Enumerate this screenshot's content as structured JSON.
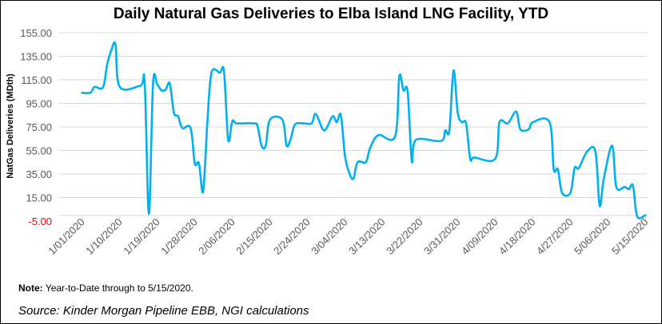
{
  "chart_data": {
    "type": "line",
    "title": "Daily Natural Gas Deliveries to Elba Island LNG Facility, YTD",
    "ylabel": "NatGas Deliveries (MDth)",
    "xlabel": "",
    "ylim": [
      -5,
      155
    ],
    "yticks": [
      "155.00",
      "135.00",
      "115.00",
      "95.00",
      "75.00",
      "55.00",
      "35.00",
      "15.00",
      "-5.00"
    ],
    "xticks": [
      "1/01/2020",
      "1/10/2020",
      "1/19/2020",
      "1/28/2020",
      "2/06/2020",
      "2/15/2020",
      "2/24/2020",
      "3/04/2020",
      "3/13/2020",
      "3/22/2020",
      "3/31/2020",
      "4/09/2020",
      "4/18/2020",
      "4/27/2020",
      "5/06/2020",
      "5/15/2020"
    ],
    "grid": true,
    "line_color": "#00B0F0",
    "negative_tick_color": "#FF0000",
    "series": [
      {
        "points": [
          [
            "1/01/2020",
            104
          ],
          [
            "1/03/2020",
            104
          ],
          [
            "1/04/2020",
            109
          ],
          [
            "1/06/2020",
            108.5
          ],
          [
            "1/07/2020",
            128
          ],
          [
            "1/08/2020",
            140
          ],
          [
            "1/09/2020",
            145
          ],
          [
            "1/10/2020",
            109
          ],
          [
            "1/15/2020",
            110
          ],
          [
            "1/16/2020",
            112
          ],
          [
            "1/17/2020",
            1
          ],
          [
            "1/18/2020",
            112
          ],
          [
            "1/19/2020",
            111
          ],
          [
            "1/20/2020",
            106
          ],
          [
            "1/21/2020",
            106.5
          ],
          [
            "1/22/2020",
            112
          ],
          [
            "1/23/2020",
            87
          ],
          [
            "1/24/2020",
            84
          ],
          [
            "1/25/2020",
            74
          ],
          [
            "1/27/2020",
            74
          ],
          [
            "1/28/2020",
            44
          ],
          [
            "1/29/2020",
            44
          ],
          [
            "1/30/2020",
            20
          ],
          [
            "1/31/2020",
            78
          ],
          [
            "2/01/2020",
            121
          ],
          [
            "2/03/2020",
            121
          ],
          [
            "2/04/2020",
            122
          ],
          [
            "2/05/2020",
            64
          ],
          [
            "2/06/2020",
            80
          ],
          [
            "2/07/2020",
            78
          ],
          [
            "2/11/2020",
            78
          ],
          [
            "2/12/2020",
            76
          ],
          [
            "2/13/2020",
            59
          ],
          [
            "2/14/2020",
            59
          ],
          [
            "2/15/2020",
            81
          ],
          [
            "2/18/2020",
            81
          ],
          [
            "2/19/2020",
            59
          ],
          [
            "2/20/2020",
            65
          ],
          [
            "2/21/2020",
            77
          ],
          [
            "2/23/2020",
            78
          ],
          [
            "2/25/2020",
            78
          ],
          [
            "2/26/2020",
            86
          ],
          [
            "2/28/2020",
            72
          ],
          [
            "3/01/2020",
            84
          ],
          [
            "3/02/2020",
            79
          ],
          [
            "3/03/2020",
            85
          ],
          [
            "3/04/2020",
            50
          ],
          [
            "3/05/2020",
            36
          ],
          [
            "3/06/2020",
            31
          ],
          [
            "3/07/2020",
            45
          ],
          [
            "3/09/2020",
            45
          ],
          [
            "3/10/2020",
            57
          ],
          [
            "3/12/2020",
            68
          ],
          [
            "3/16/2020",
            67
          ],
          [
            "3/17/2020",
            118
          ],
          [
            "3/18/2020",
            106
          ],
          [
            "3/19/2020",
            105
          ],
          [
            "3/20/2020",
            46
          ],
          [
            "3/21/2020",
            64
          ],
          [
            "3/27/2020",
            63
          ],
          [
            "3/28/2020",
            72
          ],
          [
            "3/29/2020",
            72
          ],
          [
            "3/30/2020",
            123
          ],
          [
            "3/31/2020",
            87
          ],
          [
            "4/01/2020",
            79
          ],
          [
            "4/02/2020",
            78
          ],
          [
            "4/03/2020",
            48
          ],
          [
            "4/04/2020",
            49
          ],
          [
            "4/09/2020",
            48
          ],
          [
            "4/10/2020",
            79
          ],
          [
            "4/12/2020",
            78
          ],
          [
            "4/14/2020",
            88
          ],
          [
            "4/15/2020",
            73
          ],
          [
            "4/17/2020",
            73
          ],
          [
            "4/18/2020",
            79
          ],
          [
            "4/22/2020",
            79
          ],
          [
            "4/23/2020",
            39
          ],
          [
            "4/24/2020",
            39
          ],
          [
            "4/25/2020",
            19
          ],
          [
            "4/27/2020",
            19
          ],
          [
            "4/28/2020",
            40
          ],
          [
            "4/29/2020",
            40
          ],
          [
            "5/01/2020",
            54
          ],
          [
            "5/03/2020",
            54
          ],
          [
            "5/04/2020",
            8
          ],
          [
            "5/05/2020",
            31
          ],
          [
            "5/07/2020",
            59
          ],
          [
            "5/08/2020",
            24
          ],
          [
            "5/10/2020",
            24
          ],
          [
            "5/11/2020",
            22
          ],
          [
            "5/12/2020",
            25
          ],
          [
            "5/13/2020",
            -1
          ],
          [
            "5/15/2020",
            0
          ]
        ]
      }
    ]
  },
  "note": {
    "label": "Note:",
    "text": " Year-to-Date through to 5/15/2020."
  },
  "source": "Source: Kinder Morgan Pipeline EBB, NGI calculations"
}
